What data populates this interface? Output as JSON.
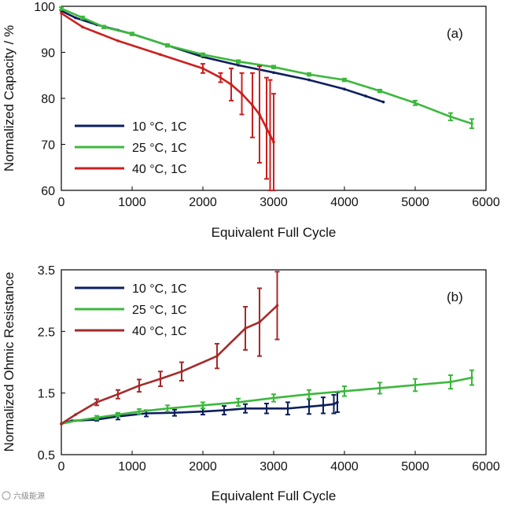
{
  "chart_data": [
    {
      "type": "line",
      "panel": "(a)",
      "xlabel": "Equivalent Full Cycle",
      "ylabel": "Normalized Capacity / %",
      "xlim": [
        0,
        6000
      ],
      "ylim": [
        60,
        100
      ],
      "xticks": [
        0,
        1000,
        2000,
        3000,
        4000,
        5000,
        6000
      ],
      "yticks": [
        60,
        70,
        80,
        90,
        100
      ],
      "legend": "left",
      "series": [
        {
          "name": "10 °C, 1C",
          "color": "#0d1f5c",
          "x": [
            0,
            200,
            500,
            800,
            1000,
            1500,
            2000,
            2500,
            3000,
            3500,
            4000,
            4300,
            4550
          ],
          "y": [
            99,
            97.5,
            96,
            94.8,
            94,
            91.5,
            89,
            87.2,
            85.6,
            84,
            82,
            80.5,
            79.2
          ]
        },
        {
          "name": "25 °C, 1C",
          "color": "#3cb83c",
          "x": [
            0,
            300,
            600,
            1000,
            1500,
            2000,
            2500,
            3000,
            3500,
            4000,
            4500,
            5000,
            5500,
            5800
          ],
          "y": [
            99.5,
            97.5,
            95.5,
            94,
            91.5,
            89.5,
            88,
            86.8,
            85.2,
            84,
            81.6,
            79,
            76,
            74.5
          ],
          "errors": [
            0.3,
            0.3,
            0.3,
            0.3,
            0.3,
            0.3,
            0.3,
            0.3,
            0.3,
            0.3,
            0.3,
            0.5,
            0.8,
            1.0
          ]
        },
        {
          "name": "40 °C, 1C",
          "color": "#cc1f1f",
          "x": [
            0,
            300,
            800,
            1400,
            2000,
            2250,
            2400,
            2550,
            2700,
            2800,
            2900,
            2950,
            3000
          ],
          "y": [
            98.5,
            95.5,
            92.5,
            89.5,
            86.5,
            84.5,
            83,
            81,
            78.5,
            76.5,
            73.5,
            72,
            70.5
          ],
          "errors": [
            0,
            0,
            0,
            0,
            1,
            1,
            3.5,
            4.5,
            7,
            10.5,
            11,
            12,
            10.5
          ]
        }
      ]
    },
    {
      "type": "line",
      "panel": "(b)",
      "xlabel": "Equivalent Full Cycle",
      "ylabel": "Normalized Ohmic Resistance",
      "xlim": [
        0,
        6000
      ],
      "ylim": [
        0.5,
        3.5
      ],
      "xticks": [
        0,
        1000,
        2000,
        3000,
        4000,
        5000,
        6000
      ],
      "yticks": [
        0.5,
        1.5,
        2.5,
        3.5
      ],
      "legend": "top-left",
      "series": [
        {
          "name": "10 °C, 1C",
          "color": "#0d1f5c",
          "x": [
            0,
            150,
            500,
            800,
            1200,
            1600,
            2000,
            2300,
            2600,
            2900,
            3200,
            3500,
            3700,
            3850,
            3900
          ],
          "y": [
            1.0,
            1.05,
            1.07,
            1.12,
            1.17,
            1.18,
            1.2,
            1.22,
            1.25,
            1.25,
            1.25,
            1.28,
            1.3,
            1.32,
            1.35
          ],
          "errors": [
            0,
            0,
            0.02,
            0.05,
            0.05,
            0.05,
            0.05,
            0.07,
            0.07,
            0.08,
            0.1,
            0.12,
            0.13,
            0.15,
            0.16
          ]
        },
        {
          "name": "25 °C, 1C",
          "color": "#3cb83c",
          "x": [
            0,
            200,
            500,
            800,
            1100,
            1500,
            2000,
            2500,
            3000,
            3500,
            4000,
            4500,
            5000,
            5500,
            5800
          ],
          "y": [
            1.0,
            1.05,
            1.1,
            1.15,
            1.2,
            1.25,
            1.3,
            1.35,
            1.42,
            1.48,
            1.53,
            1.58,
            1.63,
            1.68,
            1.75
          ],
          "errors": [
            0,
            0,
            0.03,
            0.03,
            0.04,
            0.05,
            0.05,
            0.06,
            0.06,
            0.07,
            0.08,
            0.09,
            0.1,
            0.11,
            0.12
          ]
        },
        {
          "name": "40 °C, 1C",
          "color": "#a52a2a",
          "x": [
            0,
            200,
            500,
            800,
            1100,
            1400,
            1700,
            2200,
            2600,
            2800,
            3050
          ],
          "y": [
            1.0,
            1.15,
            1.35,
            1.48,
            1.62,
            1.73,
            1.85,
            2.1,
            2.55,
            2.65,
            2.92
          ],
          "errors": [
            0,
            0,
            0.05,
            0.07,
            0.1,
            0.12,
            0.15,
            0.2,
            0.35,
            0.55,
            0.55
          ]
        }
      ]
    }
  ],
  "watermark": "六级能源"
}
